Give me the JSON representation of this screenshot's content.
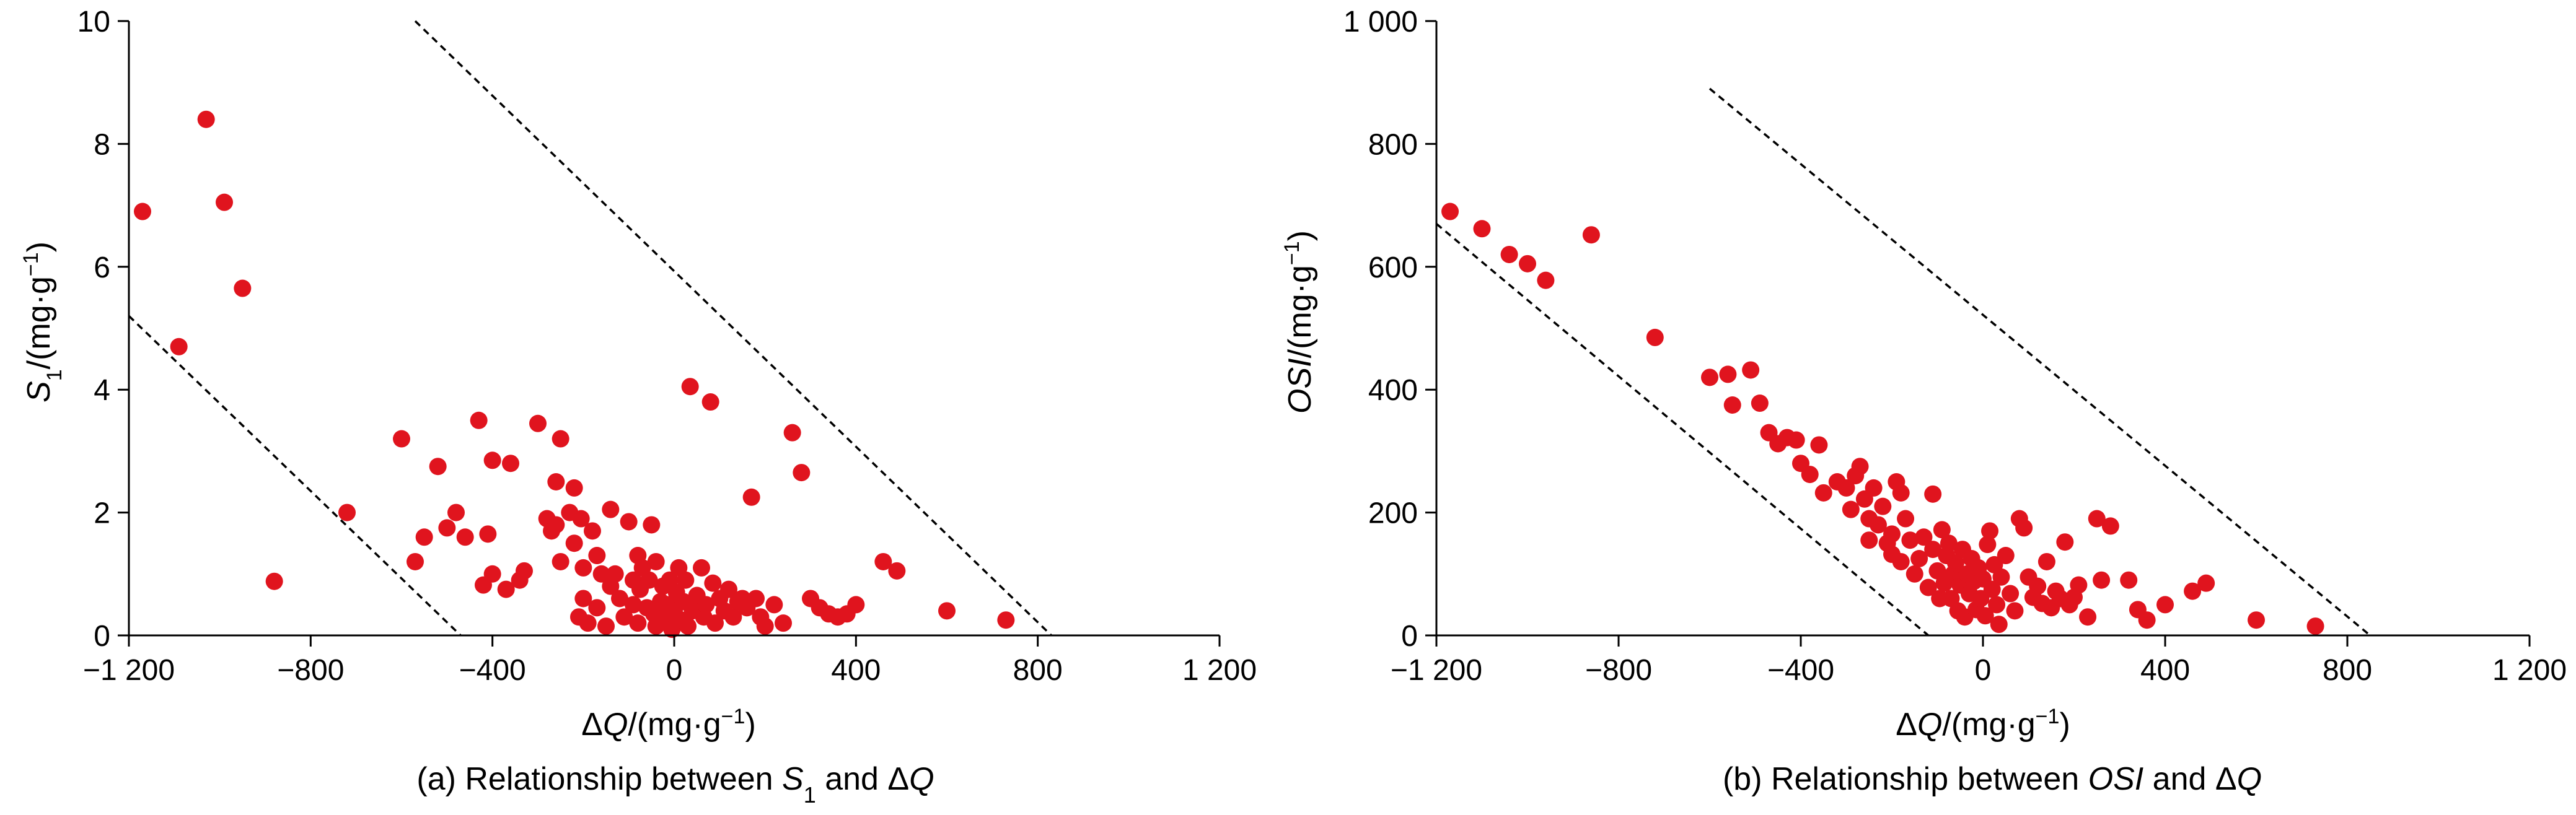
{
  "chart_data": [
    {
      "type": "scatter",
      "caption": {
        "prefix": "(a) Relationship between ",
        "var": "S",
        "sub": "1",
        "mid": " and  ",
        "delta": "Δ",
        "q": "Q"
      },
      "xlabel": {
        "delta": "Δ",
        "var": "Q",
        "unit": "/(mg·g",
        "exp": "−1",
        "close": ")"
      },
      "ylabel": {
        "var": "S",
        "sub": "1",
        "unit": "/(mg·g",
        "exp": "−1",
        "close": ")"
      },
      "xlim": [
        -1200,
        1200
      ],
      "ylim": [
        0,
        10
      ],
      "xticks": [
        -1200,
        -800,
        -400,
        0,
        400,
        800,
        1200
      ],
      "xtick_labels": [
        "−1 200",
        "−800",
        "−400",
        "0",
        "400",
        "800",
        "1 200"
      ],
      "yticks": [
        0,
        2,
        4,
        6,
        8,
        10
      ],
      "ytick_labels": [
        "0",
        "2",
        "4",
        "6",
        "8",
        "10"
      ],
      "marker_color": "#e0141e",
      "dashed_lines": [
        {
          "x1": -1200,
          "y1": 5.2,
          "x2": -470,
          "y2": 0
        },
        {
          "x1": -570,
          "y1": 10,
          "x2": 830,
          "y2": 0
        }
      ],
      "points": [
        [
          -1170,
          6.9
        ],
        [
          -1030,
          8.4
        ],
        [
          -1090,
          4.7
        ],
        [
          -990,
          7.05
        ],
        [
          -950,
          5.65
        ],
        [
          -880,
          0.88
        ],
        [
          -720,
          2.0
        ],
        [
          -600,
          3.2
        ],
        [
          -570,
          1.2
        ],
        [
          -550,
          1.6
        ],
        [
          -520,
          2.75
        ],
        [
          -500,
          1.75
        ],
        [
          -480,
          2.0
        ],
        [
          -460,
          1.6
        ],
        [
          -430,
          3.5
        ],
        [
          -420,
          0.82
        ],
        [
          -410,
          1.65
        ],
        [
          -400,
          2.85
        ],
        [
          -400,
          1.0
        ],
        [
          -370,
          0.75
        ],
        [
          -360,
          2.8
        ],
        [
          -340,
          0.9
        ],
        [
          -330,
          1.05
        ],
        [
          -300,
          3.45
        ],
        [
          -280,
          1.9
        ],
        [
          -270,
          1.7
        ],
        [
          -260,
          2.5
        ],
        [
          -260,
          1.8
        ],
        [
          -250,
          1.2
        ],
        [
          -250,
          3.2
        ],
        [
          -230,
          2.0
        ],
        [
          -220,
          2.4
        ],
        [
          -220,
          1.5
        ],
        [
          -210,
          0.3
        ],
        [
          -205,
          1.9
        ],
        [
          -200,
          1.1
        ],
        [
          -200,
          0.6
        ],
        [
          -190,
          0.2
        ],
        [
          -180,
          1.7
        ],
        [
          -170,
          1.3
        ],
        [
          -170,
          0.45
        ],
        [
          -160,
          1.0
        ],
        [
          -150,
          0.15
        ],
        [
          -140,
          0.8
        ],
        [
          -140,
          2.05
        ],
        [
          -130,
          1.0
        ],
        [
          -120,
          0.6
        ],
        [
          -110,
          0.3
        ],
        [
          -100,
          1.85
        ],
        [
          -90,
          0.9
        ],
        [
          -90,
          0.5
        ],
        [
          -80,
          0.2
        ],
        [
          -80,
          1.3
        ],
        [
          -75,
          0.75
        ],
        [
          -70,
          1.1
        ],
        [
          -60,
          0.45
        ],
        [
          -55,
          0.9
        ],
        [
          -50,
          1.8
        ],
        [
          -45,
          0.35
        ],
        [
          -40,
          0.15
        ],
        [
          -40,
          1.2
        ],
        [
          -30,
          0.55
        ],
        [
          -25,
          0.8
        ],
        [
          -20,
          0.3
        ],
        [
          -15,
          0.5
        ],
        [
          -10,
          0.9
        ],
        [
          -5,
          0.1
        ],
        [
          0,
          0.4
        ],
        [
          5,
          0.7
        ],
        [
          10,
          1.1
        ],
        [
          15,
          0.25
        ],
        [
          20,
          0.55
        ],
        [
          25,
          0.9
        ],
        [
          30,
          0.15
        ],
        [
          35,
          4.05
        ],
        [
          40,
          0.4
        ],
        [
          50,
          0.65
        ],
        [
          60,
          1.1
        ],
        [
          65,
          0.3
        ],
        [
          70,
          0.5
        ],
        [
          80,
          3.8
        ],
        [
          85,
          0.85
        ],
        [
          90,
          0.2
        ],
        [
          100,
          0.6
        ],
        [
          110,
          0.4
        ],
        [
          120,
          0.75
        ],
        [
          130,
          0.3
        ],
        [
          140,
          0.55
        ],
        [
          150,
          0.6
        ],
        [
          160,
          0.45
        ],
        [
          170,
          2.25
        ],
        [
          180,
          0.6
        ],
        [
          190,
          0.3
        ],
        [
          200,
          0.15
        ],
        [
          220,
          0.5
        ],
        [
          240,
          0.2
        ],
        [
          260,
          3.3
        ],
        [
          280,
          2.65
        ],
        [
          300,
          0.6
        ],
        [
          320,
          0.45
        ],
        [
          340,
          0.35
        ],
        [
          360,
          0.3
        ],
        [
          380,
          0.35
        ],
        [
          400,
          0.5
        ],
        [
          460,
          1.2
        ],
        [
          490,
          1.05
        ],
        [
          600,
          0.4
        ],
        [
          730,
          0.25
        ]
      ]
    },
    {
      "type": "scatter",
      "caption": {
        "prefix": "(b) Relationship between ",
        "var": "OSI",
        "mid": " and  ",
        "delta": "Δ",
        "q": "Q"
      },
      "xlabel": {
        "delta": "Δ",
        "var": "Q",
        "unit": "/(mg·g",
        "exp": "−1",
        "close": ")"
      },
      "ylabel": {
        "var": "OSI",
        "unit": "/(mg·g",
        "exp": "−1",
        "close": ")"
      },
      "xlim": [
        -1200,
        1200
      ],
      "ylim": [
        0,
        1000
      ],
      "xticks": [
        -1200,
        -800,
        -400,
        0,
        400,
        800,
        1200
      ],
      "xtick_labels": [
        "−1 200",
        "−800",
        "−400",
        "0",
        "400",
        "800",
        "1 200"
      ],
      "yticks": [
        0,
        200,
        400,
        600,
        800,
        1000
      ],
      "ytick_labels": [
        "0",
        "200",
        "400",
        "600",
        "800",
        "1 000"
      ],
      "marker_color": "#e0141e",
      "dashed_lines": [
        {
          "x1": -1200,
          "y1": 670,
          "x2": -120,
          "y2": 0
        },
        {
          "x1": -600,
          "y1": 890,
          "x2": 850,
          "y2": 0
        }
      ],
      "points": [
        [
          -1170,
          690
        ],
        [
          -1100,
          662
        ],
        [
          -1040,
          620
        ],
        [
          -1000,
          605
        ],
        [
          -960,
          578
        ],
        [
          -860,
          652
        ],
        [
          -720,
          485
        ],
        [
          -600,
          420
        ],
        [
          -560,
          425
        ],
        [
          -550,
          375
        ],
        [
          -510,
          432
        ],
        [
          -490,
          378
        ],
        [
          -470,
          330
        ],
        [
          -450,
          312
        ],
        [
          -430,
          322
        ],
        [
          -410,
          318
        ],
        [
          -400,
          280
        ],
        [
          -380,
          262
        ],
        [
          -360,
          310
        ],
        [
          -350,
          232
        ],
        [
          -320,
          250
        ],
        [
          -300,
          240
        ],
        [
          -290,
          205
        ],
        [
          -280,
          260
        ],
        [
          -270,
          275
        ],
        [
          -260,
          222
        ],
        [
          -250,
          190
        ],
        [
          -250,
          155
        ],
        [
          -240,
          240
        ],
        [
          -230,
          180
        ],
        [
          -220,
          210
        ],
        [
          -210,
          150
        ],
        [
          -200,
          132
        ],
        [
          -200,
          165
        ],
        [
          -190,
          250
        ],
        [
          -180,
          120
        ],
        [
          -180,
          232
        ],
        [
          -170,
          190
        ],
        [
          -160,
          155
        ],
        [
          -150,
          100
        ],
        [
          -140,
          125
        ],
        [
          -130,
          160
        ],
        [
          -120,
          78
        ],
        [
          -110,
          140
        ],
        [
          -110,
          230
        ],
        [
          -100,
          105
        ],
        [
          -95,
          60
        ],
        [
          -90,
          172
        ],
        [
          -85,
          85
        ],
        [
          -80,
          130
        ],
        [
          -75,
          150
        ],
        [
          -70,
          60
        ],
        [
          -65,
          100
        ],
        [
          -60,
          118
        ],
        [
          -55,
          40
        ],
        [
          -50,
          82
        ],
        [
          -45,
          140
        ],
        [
          -40,
          30
        ],
        [
          -35,
          100
        ],
        [
          -30,
          68
        ],
        [
          -25,
          125
        ],
        [
          -20,
          88
        ],
        [
          -15,
          42
        ],
        [
          -10,
          110
        ],
        [
          -5,
          60
        ],
        [
          0,
          92
        ],
        [
          5,
          32
        ],
        [
          10,
          148
        ],
        [
          15,
          170
        ],
        [
          20,
          75
        ],
        [
          25,
          115
        ],
        [
          30,
          50
        ],
        [
          35,
          18
        ],
        [
          40,
          95
        ],
        [
          50,
          130
        ],
        [
          60,
          68
        ],
        [
          70,
          40
        ],
        [
          80,
          190
        ],
        [
          90,
          175
        ],
        [
          100,
          95
        ],
        [
          110,
          62
        ],
        [
          120,
          80
        ],
        [
          130,
          52
        ],
        [
          140,
          120
        ],
        [
          150,
          45
        ],
        [
          160,
          72
        ],
        [
          170,
          60
        ],
        [
          180,
          152
        ],
        [
          190,
          50
        ],
        [
          200,
          62
        ],
        [
          210,
          82
        ],
        [
          230,
          30
        ],
        [
          250,
          190
        ],
        [
          260,
          90
        ],
        [
          280,
          178
        ],
        [
          320,
          90
        ],
        [
          340,
          42
        ],
        [
          360,
          25
        ],
        [
          400,
          50
        ],
        [
          460,
          72
        ],
        [
          490,
          85
        ],
        [
          600,
          25
        ],
        [
          730,
          15
        ]
      ]
    }
  ]
}
